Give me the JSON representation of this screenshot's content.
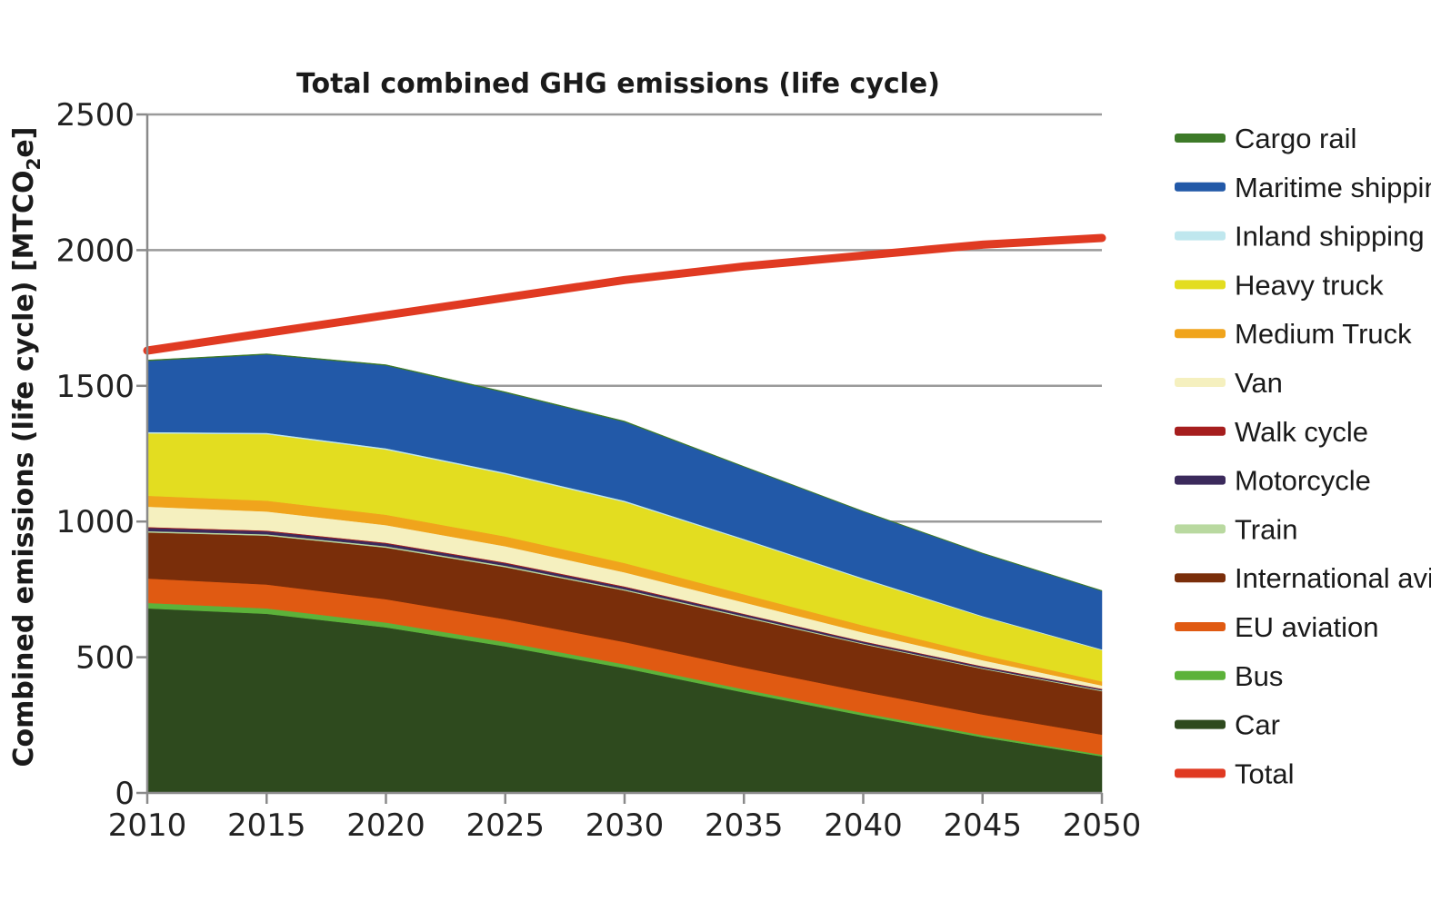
{
  "chart_data": {
    "type": "area",
    "title": "Total combined GHG emissions (life cycle)",
    "ylabel_parts": [
      "Combined emissions (life cycle) [MTCO",
      "2",
      "e]"
    ],
    "xlabel": "",
    "x": [
      2010,
      2015,
      2020,
      2025,
      2030,
      2035,
      2040,
      2045,
      2050
    ],
    "x_ticks": [
      "2010",
      "2015",
      "2020",
      "2025",
      "2030",
      "2035",
      "2040",
      "2045",
      "2050"
    ],
    "y_ticks": [
      "0",
      "500",
      "1000",
      "1500",
      "2000",
      "2500"
    ],
    "ylim": [
      0,
      2500
    ],
    "grid": true,
    "legend_position": "right",
    "stacked_series": [
      {
        "name": "Car",
        "color": "#2e4a1e",
        "values": [
          680,
          660,
          610,
          540,
          460,
          370,
          285,
          205,
          135
        ]
      },
      {
        "name": "Bus",
        "color": "#5cb23a",
        "values": [
          20,
          20,
          18,
          16,
          14,
          12,
          10,
          8,
          6
        ]
      },
      {
        "name": "EU aviation",
        "color": "#e05a12",
        "values": [
          90,
          88,
          86,
          84,
          82,
          80,
          78,
          76,
          74
        ]
      },
      {
        "name": "International aviation",
        "color": "#7a2e0a",
        "values": [
          170,
          180,
          190,
          192,
          190,
          185,
          175,
          168,
          160
        ]
      },
      {
        "name": "Train",
        "color": "#b9d9a0",
        "values": [
          5,
          5,
          5,
          5,
          4,
          4,
          3,
          3,
          3
        ]
      },
      {
        "name": "Motorcycle",
        "color": "#3b2a5c",
        "values": [
          12,
          11,
          10,
          9,
          8,
          7,
          6,
          5,
          4
        ]
      },
      {
        "name": "Walk cycle",
        "color": "#a61e1e",
        "values": [
          3,
          3,
          3,
          3,
          3,
          2,
          2,
          2,
          2
        ]
      },
      {
        "name": "Van",
        "color": "#f5f0bf",
        "values": [
          75,
          70,
          65,
          60,
          52,
          42,
          32,
          22,
          12
        ]
      },
      {
        "name": "Medium Truck",
        "color": "#f0a41c",
        "values": [
          40,
          40,
          38,
          36,
          34,
          30,
          26,
          20,
          15
        ]
      },
      {
        "name": "Heavy truck",
        "color": "#e3dd20",
        "values": [
          230,
          245,
          240,
          230,
          225,
          200,
          170,
          140,
          115
        ]
      },
      {
        "name": "Inland shipping",
        "color": "#bfe7ee",
        "values": [
          5,
          5,
          5,
          5,
          5,
          4,
          4,
          3,
          3
        ]
      },
      {
        "name": "Maritime shipping",
        "color": "#2259a8",
        "values": [
          262,
          288,
          305,
          295,
          290,
          265,
          245,
          230,
          215
        ]
      },
      {
        "name": "Cargo rail",
        "color": "#3d7a28",
        "values": [
          3,
          3,
          3,
          3,
          3,
          2,
          2,
          2,
          2
        ]
      }
    ],
    "line_series": [
      {
        "name": "Total",
        "color": "#e03a22",
        "values": [
          1630,
          1695,
          1760,
          1825,
          1890,
          1940,
          1980,
          2020,
          2045
        ]
      }
    ],
    "legend": [
      {
        "label": "Cargo rail",
        "color": "#3d7a28"
      },
      {
        "label": "Maritime shipping",
        "color": "#2259a8"
      },
      {
        "label": "Inland shipping",
        "color": "#bfe7ee"
      },
      {
        "label": "Heavy truck",
        "color": "#e3dd20"
      },
      {
        "label": "Medium Truck",
        "color": "#f0a41c"
      },
      {
        "label": "Van",
        "color": "#f5f0bf"
      },
      {
        "label": "Walk cycle",
        "color": "#a61e1e"
      },
      {
        "label": "Motorcycle",
        "color": "#3b2a5c"
      },
      {
        "label": "Train",
        "color": "#b9d9a0"
      },
      {
        "label": "International aviat",
        "color": "#7a2e0a"
      },
      {
        "label": "EU aviation",
        "color": "#e05a12"
      },
      {
        "label": "Bus",
        "color": "#5cb23a"
      },
      {
        "label": "Car",
        "color": "#2e4a1e"
      },
      {
        "label": "Total",
        "color": "#e03a22"
      }
    ]
  }
}
